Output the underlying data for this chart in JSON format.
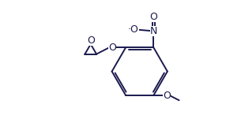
{
  "bg_color": "#ffffff",
  "line_color": "#1a1a4e",
  "line_width": 1.4,
  "font_size": 8.5,
  "font_color": "#1a1a4e",
  "figsize": [
    2.86,
    1.7
  ],
  "dpi": 100,
  "xlim": [
    0.0,
    10.0
  ],
  "ylim": [
    0.0,
    6.0
  ]
}
